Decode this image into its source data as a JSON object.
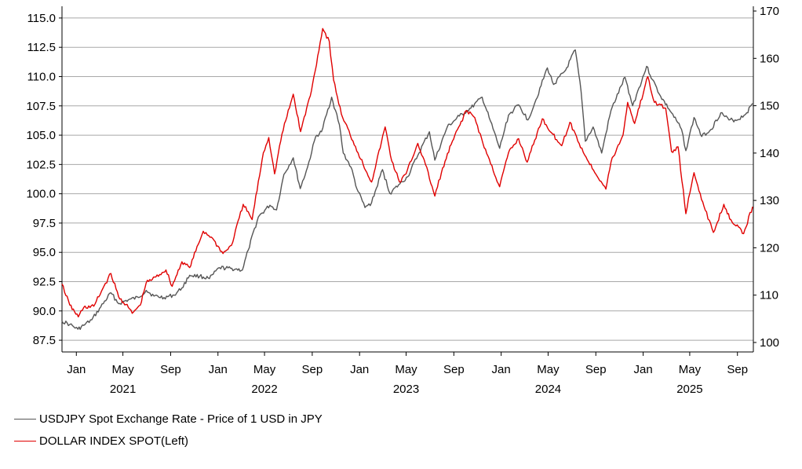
{
  "chart_data": {
    "type": "line",
    "title": "",
    "grid": true,
    "legend_position": "bottom-left",
    "left_axis": {
      "ylim": [
        86.5,
        116.0
      ],
      "ticks": [
        "87.5",
        "90.0",
        "92.5",
        "95.0",
        "97.5",
        "100.0",
        "102.5",
        "105.0",
        "107.5",
        "110.0",
        "112.5",
        "115.0"
      ],
      "tick_values": [
        87.5,
        90,
        92.5,
        95,
        97.5,
        100,
        102.5,
        105,
        107.5,
        110,
        112.5,
        115
      ]
    },
    "right_axis": {
      "ylim": [
        98.0,
        171.0
      ],
      "ticks": [
        "100",
        "110",
        "120",
        "130",
        "140",
        "150",
        "160",
        "170"
      ],
      "tick_values": [
        100,
        110,
        120,
        130,
        140,
        150,
        160,
        170
      ]
    },
    "x_axis": {
      "range": [
        "2020-11-25",
        "2025-10-12"
      ],
      "month_ticks": [
        {
          "date": "2021-01-01",
          "label": "Jan"
        },
        {
          "date": "2021-05-01",
          "label": "May"
        },
        {
          "date": "2021-09-01",
          "label": "Sep"
        },
        {
          "date": "2022-01-01",
          "label": "Jan"
        },
        {
          "date": "2022-05-01",
          "label": "May"
        },
        {
          "date": "2022-09-01",
          "label": "Sep"
        },
        {
          "date": "2023-01-01",
          "label": "Jan"
        },
        {
          "date": "2023-05-01",
          "label": "May"
        },
        {
          "date": "2023-09-01",
          "label": "Sep"
        },
        {
          "date": "2024-01-01",
          "label": "Jan"
        },
        {
          "date": "2024-05-01",
          "label": "May"
        },
        {
          "date": "2024-09-01",
          "label": "Sep"
        },
        {
          "date": "2025-01-01",
          "label": "Jan"
        },
        {
          "date": "2025-05-01",
          "label": "May"
        },
        {
          "date": "2025-09-01",
          "label": "Sep"
        }
      ],
      "year_labels": [
        {
          "date": "2021-05-01",
          "label": "2021"
        },
        {
          "date": "2022-05-01",
          "label": "2022"
        },
        {
          "date": "2023-05-01",
          "label": "2023"
        },
        {
          "date": "2024-05-01",
          "label": "2024"
        },
        {
          "date": "2025-05-01",
          "label": "2025"
        }
      ]
    },
    "series": [
      {
        "name": "USDJPY Spot Exchange Rate - Price of 1 USD in JPY",
        "axis": "right",
        "color": "#555555",
        "data": [
          [
            "2020-11-25",
            104.5
          ],
          [
            "2020-12-15",
            103.8
          ],
          [
            "2021-01-05",
            102.8
          ],
          [
            "2021-01-20",
            103.6
          ],
          [
            "2021-02-10",
            104.8
          ],
          [
            "2021-03-05",
            107.5
          ],
          [
            "2021-03-31",
            110.5
          ],
          [
            "2021-04-20",
            108.2
          ],
          [
            "2021-05-15",
            109.0
          ],
          [
            "2021-06-10",
            109.5
          ],
          [
            "2021-06-30",
            111.0
          ],
          [
            "2021-07-20",
            109.8
          ],
          [
            "2021-08-15",
            109.5
          ],
          [
            "2021-09-10",
            110.0
          ],
          [
            "2021-09-30",
            111.5
          ],
          [
            "2021-10-20",
            114.2
          ],
          [
            "2021-11-15",
            114.0
          ],
          [
            "2021-12-10",
            113.5
          ],
          [
            "2022-01-05",
            115.8
          ],
          [
            "2022-02-15",
            115.5
          ],
          [
            "2022-03-05",
            115.3
          ],
          [
            "2022-03-20",
            119.5
          ],
          [
            "2022-04-15",
            126.5
          ],
          [
            "2022-05-15",
            129.0
          ],
          [
            "2022-06-01",
            128.0
          ],
          [
            "2022-06-20",
            135.5
          ],
          [
            "2022-07-14",
            139.0
          ],
          [
            "2022-08-01",
            132.5
          ],
          [
            "2022-08-20",
            137.0
          ],
          [
            "2022-09-10",
            143.5
          ],
          [
            "2022-09-25",
            144.5
          ],
          [
            "2022-10-21",
            151.8
          ],
          [
            "2022-11-10",
            146.0
          ],
          [
            "2022-11-20",
            140.0
          ],
          [
            "2022-12-10",
            137.0
          ],
          [
            "2022-12-25",
            132.5
          ],
          [
            "2023-01-15",
            128.5
          ],
          [
            "2023-02-01",
            129.5
          ],
          [
            "2023-03-01",
            136.5
          ],
          [
            "2023-03-20",
            131.5
          ],
          [
            "2023-04-15",
            133.5
          ],
          [
            "2023-05-05",
            135.0
          ],
          [
            "2023-05-31",
            139.5
          ],
          [
            "2023-06-30",
            144.5
          ],
          [
            "2023-07-14",
            138.5
          ],
          [
            "2023-08-15",
            145.5
          ],
          [
            "2023-09-15",
            147.8
          ],
          [
            "2023-10-15",
            149.5
          ],
          [
            "2023-11-13",
            151.8
          ],
          [
            "2023-12-01",
            147.5
          ],
          [
            "2023-12-28",
            141.0
          ],
          [
            "2024-01-20",
            148.0
          ],
          [
            "2024-02-15",
            150.2
          ],
          [
            "2024-03-10",
            147.0
          ],
          [
            "2024-03-31",
            151.3
          ],
          [
            "2024-04-29",
            158.0
          ],
          [
            "2024-05-15",
            154.5
          ],
          [
            "2024-06-15",
            157.5
          ],
          [
            "2024-07-10",
            161.8
          ],
          [
            "2024-07-25",
            153.0
          ],
          [
            "2024-08-05",
            142.5
          ],
          [
            "2024-08-25",
            145.5
          ],
          [
            "2024-09-16",
            140.0
          ],
          [
            "2024-10-10",
            149.0
          ],
          [
            "2024-11-15",
            156.0
          ],
          [
            "2024-12-05",
            150.0
          ],
          [
            "2025-01-10",
            158.3
          ],
          [
            "2025-01-25",
            155.5
          ],
          [
            "2025-02-15",
            152.0
          ],
          [
            "2025-03-15",
            148.5
          ],
          [
            "2025-04-10",
            145.0
          ],
          [
            "2025-04-21",
            140.5
          ],
          [
            "2025-05-12",
            147.5
          ],
          [
            "2025-06-01",
            143.5
          ],
          [
            "2025-06-25",
            145.0
          ],
          [
            "2025-07-20",
            148.5
          ],
          [
            "2025-08-10",
            147.0
          ],
          [
            "2025-09-01",
            147.0
          ],
          [
            "2025-09-25",
            148.5
          ],
          [
            "2025-10-10",
            150.5
          ]
        ]
      },
      {
        "name": "DOLLAR INDEX SPOT(Left)",
        "axis": "left",
        "color": "#e00000",
        "data": [
          [
            "2020-11-25",
            92.3
          ],
          [
            "2020-12-15",
            90.5
          ],
          [
            "2021-01-06",
            89.5
          ],
          [
            "2021-01-20",
            90.3
          ],
          [
            "2021-02-15",
            90.4
          ],
          [
            "2021-03-10",
            91.9
          ],
          [
            "2021-03-31",
            93.2
          ],
          [
            "2021-04-20",
            91.2
          ],
          [
            "2021-05-15",
            90.3
          ],
          [
            "2021-05-25",
            89.8
          ],
          [
            "2021-06-15",
            90.5
          ],
          [
            "2021-06-30",
            92.4
          ],
          [
            "2021-07-25",
            92.9
          ],
          [
            "2021-08-20",
            93.5
          ],
          [
            "2021-09-05",
            92.1
          ],
          [
            "2021-09-30",
            94.2
          ],
          [
            "2021-10-20",
            93.7
          ],
          [
            "2021-11-24",
            96.8
          ],
          [
            "2021-12-15",
            96.3
          ],
          [
            "2022-01-14",
            94.9
          ],
          [
            "2022-02-05",
            95.6
          ],
          [
            "2022-03-07",
            99.1
          ],
          [
            "2022-03-30",
            97.8
          ],
          [
            "2022-04-28",
            103.5
          ],
          [
            "2022-05-12",
            104.8
          ],
          [
            "2022-05-27",
            101.7
          ],
          [
            "2022-06-15",
            105.1
          ],
          [
            "2022-07-14",
            108.5
          ],
          [
            "2022-08-02",
            105.3
          ],
          [
            "2022-08-30",
            108.8
          ],
          [
            "2022-09-28",
            114.1
          ],
          [
            "2022-10-15",
            113.0
          ],
          [
            "2022-10-26",
            109.7
          ],
          [
            "2022-11-15",
            106.8
          ],
          [
            "2022-12-15",
            104.5
          ],
          [
            "2023-01-20",
            101.8
          ],
          [
            "2023-02-01",
            101.0
          ],
          [
            "2023-03-08",
            105.7
          ],
          [
            "2023-03-25",
            102.8
          ],
          [
            "2023-04-14",
            101.0
          ],
          [
            "2023-05-01",
            101.7
          ],
          [
            "2023-05-31",
            104.3
          ],
          [
            "2023-06-20",
            102.5
          ],
          [
            "2023-07-14",
            99.8
          ],
          [
            "2023-07-31",
            101.8
          ],
          [
            "2023-08-25",
            104.2
          ],
          [
            "2023-10-03",
            107.1
          ],
          [
            "2023-10-25",
            106.5
          ],
          [
            "2023-11-15",
            104.3
          ],
          [
            "2023-12-28",
            100.6
          ],
          [
            "2024-01-20",
            103.5
          ],
          [
            "2024-02-15",
            104.7
          ],
          [
            "2024-03-08",
            102.7
          ],
          [
            "2024-04-16",
            106.4
          ],
          [
            "2024-05-10",
            105.2
          ],
          [
            "2024-06-05",
            104.1
          ],
          [
            "2024-06-26",
            106.1
          ],
          [
            "2024-07-20",
            104.3
          ],
          [
            "2024-08-10",
            102.9
          ],
          [
            "2024-09-27",
            100.4
          ],
          [
            "2024-10-10",
            102.7
          ],
          [
            "2024-11-10",
            105.0
          ],
          [
            "2024-11-22",
            107.8
          ],
          [
            "2024-12-10",
            106.0
          ],
          [
            "2025-01-13",
            110.0
          ],
          [
            "2025-01-30",
            107.8
          ],
          [
            "2025-02-28",
            107.3
          ],
          [
            "2025-03-15",
            103.6
          ],
          [
            "2025-04-01",
            104.0
          ],
          [
            "2025-04-21",
            98.3
          ],
          [
            "2025-05-12",
            101.8
          ],
          [
            "2025-06-10",
            98.6
          ],
          [
            "2025-07-01",
            96.7
          ],
          [
            "2025-07-28",
            99.1
          ],
          [
            "2025-08-15",
            97.8
          ],
          [
            "2025-09-17",
            96.6
          ],
          [
            "2025-10-10",
            98.9
          ]
        ]
      }
    ]
  }
}
